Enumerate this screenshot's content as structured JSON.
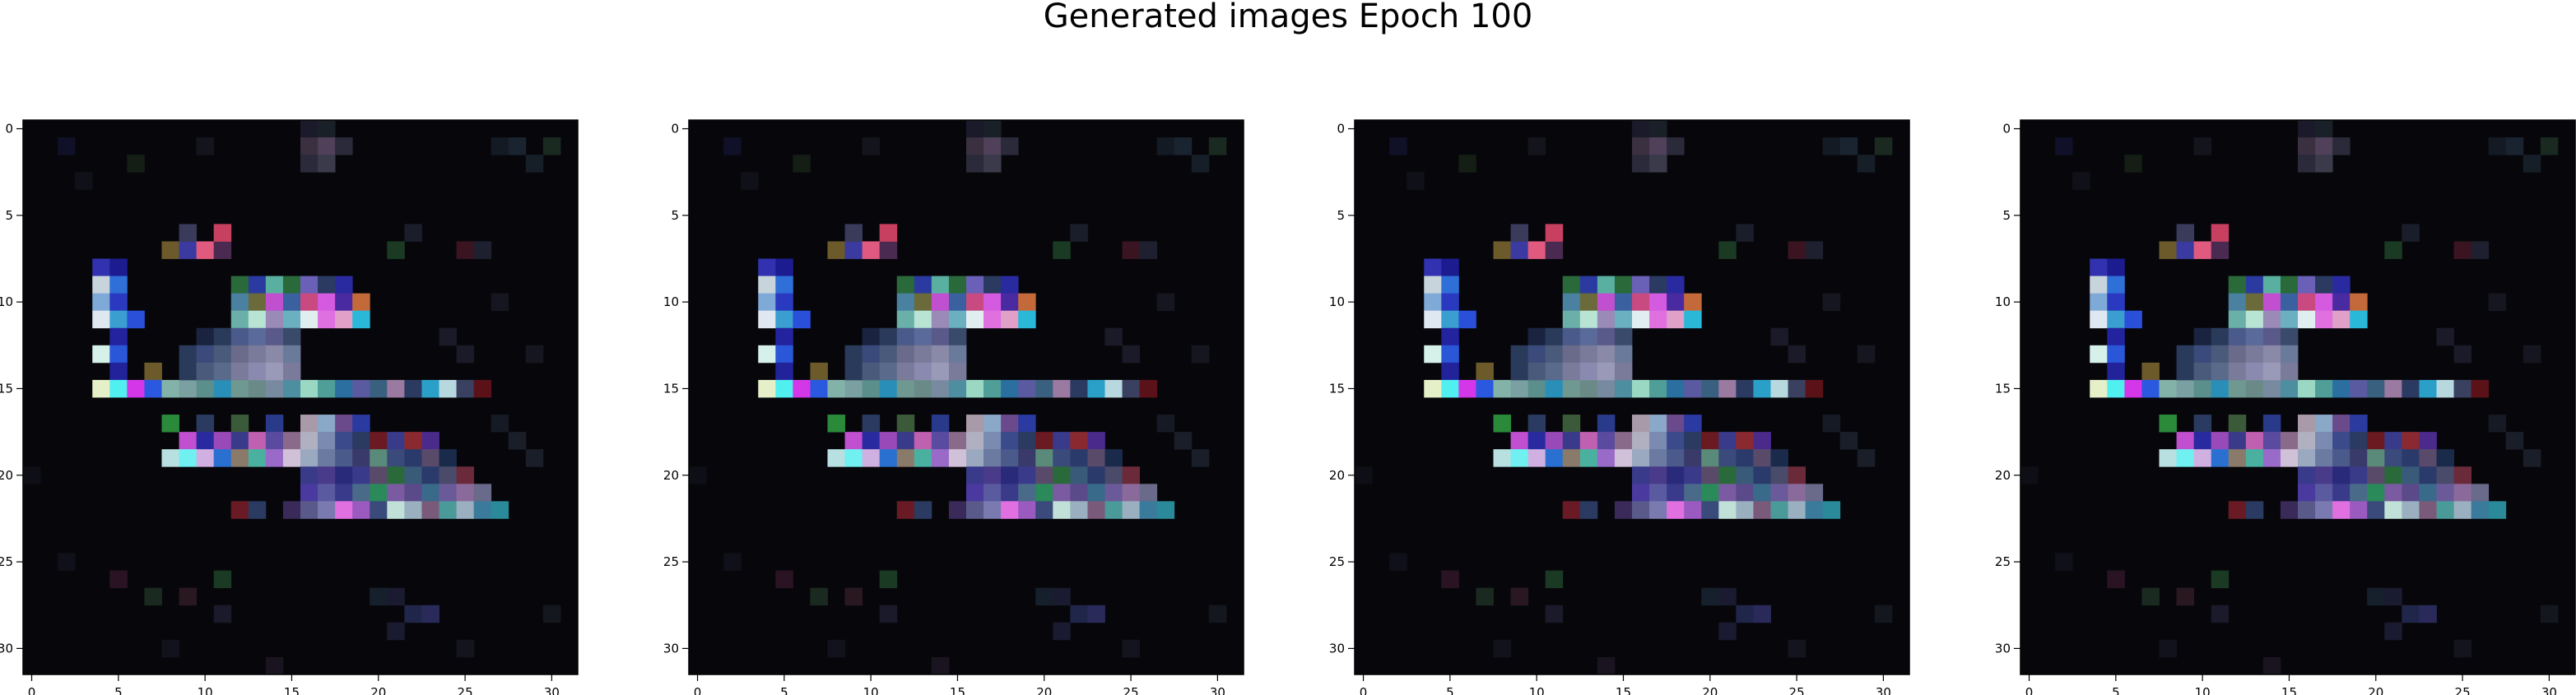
{
  "figure": {
    "title": "Generated images Epoch 100"
  },
  "chart_data": [
    {
      "type": "heatmap",
      "xticks": [
        0,
        5,
        10,
        15,
        20,
        25,
        30
      ],
      "yticks": [
        0,
        5,
        10,
        15,
        20,
        25,
        30
      ],
      "xlim": [
        -0.5,
        31.5
      ],
      "ylim": [
        31.5,
        -0.5
      ],
      "grid": false,
      "grid_size": [
        32,
        32
      ],
      "background_color": "#07070b",
      "pixels": [
        {
          "x": 4,
          "y": 8,
          "color": "#3232b0"
        },
        {
          "x": 5,
          "y": 8,
          "color": "#1c1c90"
        },
        {
          "x": 4,
          "y": 9,
          "color": "#c8d4dc"
        },
        {
          "x": 5,
          "y": 9,
          "color": "#2f6fd8"
        },
        {
          "x": 4,
          "y": 10,
          "color": "#7fa9d6"
        },
        {
          "x": 5,
          "y": 10,
          "color": "#2a3ac0"
        },
        {
          "x": 4,
          "y": 11,
          "color": "#dfe8f0"
        },
        {
          "x": 5,
          "y": 11,
          "color": "#3a9fd0"
        },
        {
          "x": 6,
          "y": 11,
          "color": "#2a4fd8"
        },
        {
          "x": 5,
          "y": 12,
          "color": "#2323a0"
        },
        {
          "x": 4,
          "y": 13,
          "color": "#d6f0ea"
        },
        {
          "x": 5,
          "y": 13,
          "color": "#2a56d8"
        },
        {
          "x": 5,
          "y": 14,
          "color": "#22229a"
        },
        {
          "x": 7,
          "y": 14,
          "color": "#6d5a2a"
        },
        {
          "x": 4,
          "y": 15,
          "color": "#e6f0c8"
        },
        {
          "x": 5,
          "y": 15,
          "color": "#50f0f0"
        },
        {
          "x": 6,
          "y": 15,
          "color": "#d437e8"
        },
        {
          "x": 7,
          "y": 15,
          "color": "#2a59e0"
        },
        {
          "x": 8,
          "y": 15,
          "color": "#83b3a8"
        },
        {
          "x": 9,
          "y": 15,
          "color": "#7aa0a2"
        },
        {
          "x": 10,
          "y": 15,
          "color": "#5a8f8c"
        },
        {
          "x": 11,
          "y": 15,
          "color": "#2a8fb8"
        },
        {
          "x": 12,
          "y": 15,
          "color": "#6f9890"
        },
        {
          "x": 13,
          "y": 15,
          "color": "#6a8a88"
        },
        {
          "x": 14,
          "y": 15,
          "color": "#788aa0"
        },
        {
          "x": 15,
          "y": 15,
          "color": "#4d8ea0"
        },
        {
          "x": 16,
          "y": 15,
          "color": "#9ad8c4"
        },
        {
          "x": 17,
          "y": 15,
          "color": "#4f9e98"
        },
        {
          "x": 18,
          "y": 15,
          "color": "#2a6fa0"
        },
        {
          "x": 19,
          "y": 15,
          "color": "#5a5aa0"
        },
        {
          "x": 20,
          "y": 15,
          "color": "#3a6080"
        },
        {
          "x": 21,
          "y": 15,
          "color": "#9a7aa0"
        },
        {
          "x": 22,
          "y": 15,
          "color": "#2a3a60"
        },
        {
          "x": 23,
          "y": 15,
          "color": "#2aa0c8"
        },
        {
          "x": 24,
          "y": 15,
          "color": "#b8d8e0"
        },
        {
          "x": 25,
          "y": 15,
          "color": "#3a4060"
        },
        {
          "x": 26,
          "y": 15,
          "color": "#5a1218"
        },
        {
          "x": 8,
          "y": 7,
          "color": "#6d5a2a"
        },
        {
          "x": 9,
          "y": 7,
          "color": "#3a3aa0"
        },
        {
          "x": 10,
          "y": 7,
          "color": "#e05a80"
        },
        {
          "x": 11,
          "y": 7,
          "color": "#4a2a50"
        },
        {
          "x": 11,
          "y": 6,
          "color": "#c84060"
        },
        {
          "x": 9,
          "y": 6,
          "color": "#3a3a5a"
        },
        {
          "x": 12,
          "y": 9,
          "color": "#2a6a3a"
        },
        {
          "x": 13,
          "y": 9,
          "color": "#2a3aa0"
        },
        {
          "x": 14,
          "y": 9,
          "color": "#5ab0a0"
        },
        {
          "x": 15,
          "y": 9,
          "color": "#2a6a3a"
        },
        {
          "x": 16,
          "y": 9,
          "color": "#6a60b8"
        },
        {
          "x": 17,
          "y": 9,
          "color": "#2a3a60"
        },
        {
          "x": 18,
          "y": 9,
          "color": "#2a2aa0"
        },
        {
          "x": 12,
          "y": 10,
          "color": "#4a80a0"
        },
        {
          "x": 13,
          "y": 10,
          "color": "#6a6a3a"
        },
        {
          "x": 14,
          "y": 10,
          "color": "#c050d0"
        },
        {
          "x": 15,
          "y": 10,
          "color": "#3a60a0"
        },
        {
          "x": 16,
          "y": 10,
          "color": "#c84a80"
        },
        {
          "x": 17,
          "y": 10,
          "color": "#d45ae0"
        },
        {
          "x": 18,
          "y": 10,
          "color": "#4a2aa0"
        },
        {
          "x": 19,
          "y": 10,
          "color": "#c46a3a"
        },
        {
          "x": 12,
          "y": 11,
          "color": "#6ab0a8"
        },
        {
          "x": 13,
          "y": 11,
          "color": "#b8e4d4"
        },
        {
          "x": 14,
          "y": 11,
          "color": "#9a8ab8"
        },
        {
          "x": 15,
          "y": 11,
          "color": "#6ab0c0"
        },
        {
          "x": 16,
          "y": 11,
          "color": "#e0eef0"
        },
        {
          "x": 17,
          "y": 11,
          "color": "#e070e0"
        },
        {
          "x": 18,
          "y": 11,
          "color": "#e0a0c8"
        },
        {
          "x": 19,
          "y": 11,
          "color": "#2ab8d8"
        },
        {
          "x": 10,
          "y": 12,
          "color": "#1a2440"
        },
        {
          "x": 11,
          "y": 12,
          "color": "#2a3a5a"
        },
        {
          "x": 12,
          "y": 12,
          "color": "#4a5a8a"
        },
        {
          "x": 13,
          "y": 12,
          "color": "#5a6a9a"
        },
        {
          "x": 14,
          "y": 12,
          "color": "#5a5a8a"
        },
        {
          "x": 15,
          "y": 12,
          "color": "#3a4a6a"
        },
        {
          "x": 9,
          "y": 13,
          "color": "#2a3a5a"
        },
        {
          "x": 10,
          "y": 13,
          "color": "#3a4a7a"
        },
        {
          "x": 11,
          "y": 13,
          "color": "#4a5a7a"
        },
        {
          "x": 12,
          "y": 13,
          "color": "#6a6a8a"
        },
        {
          "x": 13,
          "y": 13,
          "color": "#7a7a9a"
        },
        {
          "x": 14,
          "y": 13,
          "color": "#8a8aa8"
        },
        {
          "x": 15,
          "y": 13,
          "color": "#6a7a9a"
        },
        {
          "x": 9,
          "y": 14,
          "color": "#2a3a5a"
        },
        {
          "x": 10,
          "y": 14,
          "color": "#4a5a7a"
        },
        {
          "x": 11,
          "y": 14,
          "color": "#5a6a8a"
        },
        {
          "x": 12,
          "y": 14,
          "color": "#7a7a9a"
        },
        {
          "x": 13,
          "y": 14,
          "color": "#8a8ab0"
        },
        {
          "x": 14,
          "y": 14,
          "color": "#9a9ab8"
        },
        {
          "x": 15,
          "y": 14,
          "color": "#7a7a9a"
        },
        {
          "x": 8,
          "y": 17,
          "color": "#2a8a3a"
        },
        {
          "x": 10,
          "y": 17,
          "color": "#2a3a60"
        },
        {
          "x": 12,
          "y": 17,
          "color": "#3a5a3a"
        },
        {
          "x": 14,
          "y": 17,
          "color": "#2a3a8a"
        },
        {
          "x": 16,
          "y": 17,
          "color": "#a89aa8"
        },
        {
          "x": 17,
          "y": 17,
          "color": "#8aa8c8"
        },
        {
          "x": 18,
          "y": 17,
          "color": "#6a4a8a"
        },
        {
          "x": 19,
          "y": 17,
          "color": "#2a3aa0"
        },
        {
          "x": 9,
          "y": 18,
          "color": "#c050d0"
        },
        {
          "x": 10,
          "y": 18,
          "color": "#2a2aa0"
        },
        {
          "x": 11,
          "y": 18,
          "color": "#9a4ab8"
        },
        {
          "x": 12,
          "y": 18,
          "color": "#3a3a8a"
        },
        {
          "x": 13,
          "y": 18,
          "color": "#c060b0"
        },
        {
          "x": 14,
          "y": 18,
          "color": "#5a4aa0"
        },
        {
          "x": 15,
          "y": 18,
          "color": "#8a6a8a"
        },
        {
          "x": 16,
          "y": 18,
          "color": "#b0b0c0"
        },
        {
          "x": 17,
          "y": 18,
          "color": "#7a8ab0"
        },
        {
          "x": 18,
          "y": 18,
          "color": "#3a4a8a"
        },
        {
          "x": 19,
          "y": 18,
          "color": "#2a3a60"
        },
        {
          "x": 20,
          "y": 18,
          "color": "#6a1a20"
        },
        {
          "x": 21,
          "y": 18,
          "color": "#3a3a8a"
        },
        {
          "x": 22,
          "y": 18,
          "color": "#8a2a30"
        },
        {
          "x": 23,
          "y": 18,
          "color": "#4a2a8a"
        },
        {
          "x": 8,
          "y": 19,
          "color": "#b8e0e0"
        },
        {
          "x": 9,
          "y": 19,
          "color": "#70f0f0"
        },
        {
          "x": 10,
          "y": 19,
          "color": "#d0b0e0"
        },
        {
          "x": 11,
          "y": 19,
          "color": "#2a70d0"
        },
        {
          "x": 12,
          "y": 19,
          "color": "#8a7a6a"
        },
        {
          "x": 13,
          "y": 19,
          "color": "#4ab0a0"
        },
        {
          "x": 14,
          "y": 19,
          "color": "#9a6ac8"
        },
        {
          "x": 15,
          "y": 19,
          "color": "#d0c0d8"
        },
        {
          "x": 16,
          "y": 19,
          "color": "#9aa8c0"
        },
        {
          "x": 17,
          "y": 19,
          "color": "#6a7aa0"
        },
        {
          "x": 18,
          "y": 19,
          "color": "#4a5a8a"
        },
        {
          "x": 19,
          "y": 19,
          "color": "#3a3a6a"
        },
        {
          "x": 20,
          "y": 19,
          "color": "#5a8a7a"
        },
        {
          "x": 21,
          "y": 19,
          "color": "#3a4a7a"
        },
        {
          "x": 22,
          "y": 19,
          "color": "#2a3a6a"
        },
        {
          "x": 23,
          "y": 19,
          "color": "#5a4a6a"
        },
        {
          "x": 24,
          "y": 19,
          "color": "#1a2a4a"
        },
        {
          "x": 16,
          "y": 20,
          "color": "#3a3a8a"
        },
        {
          "x": 17,
          "y": 20,
          "color": "#4a3a8a"
        },
        {
          "x": 18,
          "y": 20,
          "color": "#2a2a7a"
        },
        {
          "x": 19,
          "y": 20,
          "color": "#3a3a8a"
        },
        {
          "x": 20,
          "y": 20,
          "color": "#5a4a6a"
        },
        {
          "x": 21,
          "y": 20,
          "color": "#2a6a3a"
        },
        {
          "x": 22,
          "y": 20,
          "color": "#3a5a7a"
        },
        {
          "x": 23,
          "y": 20,
          "color": "#2a3a6a"
        },
        {
          "x": 24,
          "y": 20,
          "color": "#4a4a6a"
        },
        {
          "x": 25,
          "y": 20,
          "color": "#6a2a3a"
        },
        {
          "x": 16,
          "y": 21,
          "color": "#4a3aa0"
        },
        {
          "x": 17,
          "y": 21,
          "color": "#5a5aa0"
        },
        {
          "x": 18,
          "y": 21,
          "color": "#3a3a8a"
        },
        {
          "x": 19,
          "y": 21,
          "color": "#4a6a8a"
        },
        {
          "x": 20,
          "y": 21,
          "color": "#2a8a5a"
        },
        {
          "x": 21,
          "y": 21,
          "color": "#7a5aa0"
        },
        {
          "x": 22,
          "y": 21,
          "color": "#5a4a8a"
        },
        {
          "x": 23,
          "y": 21,
          "color": "#3a6a8a"
        },
        {
          "x": 24,
          "y": 21,
          "color": "#6a5a9a"
        },
        {
          "x": 25,
          "y": 21,
          "color": "#8a6a9a"
        },
        {
          "x": 26,
          "y": 21,
          "color": "#6a6a8a"
        },
        {
          "x": 12,
          "y": 22,
          "color": "#6a1a24"
        },
        {
          "x": 13,
          "y": 22,
          "color": "#2a3a60"
        },
        {
          "x": 15,
          "y": 22,
          "color": "#3a2a5a"
        },
        {
          "x": 16,
          "y": 22,
          "color": "#5a5a8a"
        },
        {
          "x": 17,
          "y": 22,
          "color": "#7a7ab0"
        },
        {
          "x": 18,
          "y": 22,
          "color": "#e070e0"
        },
        {
          "x": 19,
          "y": 22,
          "color": "#9a5ac0"
        },
        {
          "x": 20,
          "y": 22,
          "color": "#3a4a7a"
        },
        {
          "x": 21,
          "y": 22,
          "color": "#c0e0d8"
        },
        {
          "x": 22,
          "y": 22,
          "color": "#9ab0c0"
        },
        {
          "x": 23,
          "y": 22,
          "color": "#7a5a7a"
        },
        {
          "x": 24,
          "y": 22,
          "color": "#4a9a9a"
        },
        {
          "x": 25,
          "y": 22,
          "color": "#9ab0c0"
        },
        {
          "x": 26,
          "y": 22,
          "color": "#3a7a9a"
        },
        {
          "x": 27,
          "y": 22,
          "color": "#2a8a9a"
        },
        {
          "x": 10,
          "y": 1,
          "color": "#14141c"
        },
        {
          "x": 16,
          "y": 0,
          "color": "#1a1a2a"
        },
        {
          "x": 17,
          "y": 0,
          "color": "#1a2028"
        },
        {
          "x": 16,
          "y": 1,
          "color": "#3a3040"
        },
        {
          "x": 17,
          "y": 1,
          "color": "#50405a"
        },
        {
          "x": 18,
          "y": 1,
          "color": "#2a2a3a"
        },
        {
          "x": 16,
          "y": 2,
          "color": "#2a2a3a"
        },
        {
          "x": 17,
          "y": 2,
          "color": "#3a3a4a"
        },
        {
          "x": 27,
          "y": 1,
          "color": "#141a24"
        },
        {
          "x": 28,
          "y": 1,
          "color": "#1a2430"
        },
        {
          "x": 30,
          "y": 1,
          "color": "#1a2a20"
        },
        {
          "x": 29,
          "y": 2,
          "color": "#161e28"
        },
        {
          "x": 22,
          "y": 6,
          "color": "#1a1e2a"
        },
        {
          "x": 25,
          "y": 7,
          "color": "#3a1420"
        },
        {
          "x": 21,
          "y": 7,
          "color": "#1a3a24"
        },
        {
          "x": 26,
          "y": 7,
          "color": "#1e2030"
        },
        {
          "x": 20,
          "y": 27,
          "color": "#16202c"
        },
        {
          "x": 21,
          "y": 27,
          "color": "#1a1a30"
        },
        {
          "x": 22,
          "y": 28,
          "color": "#20264a"
        },
        {
          "x": 23,
          "y": 28,
          "color": "#2a2a5a"
        },
        {
          "x": 21,
          "y": 29,
          "color": "#1a1a30"
        },
        {
          "x": 7,
          "y": 27,
          "color": "#1a2a20"
        },
        {
          "x": 9,
          "y": 27,
          "color": "#2a1820"
        },
        {
          "x": 11,
          "y": 26,
          "color": "#1a3a24"
        },
        {
          "x": 5,
          "y": 26,
          "color": "#2a1424"
        },
        {
          "x": 11,
          "y": 28,
          "color": "#1a1a2a"
        },
        {
          "x": 25,
          "y": 13,
          "color": "#1a1a28"
        },
        {
          "x": 24,
          "y": 12,
          "color": "#1a1a28"
        },
        {
          "x": 29,
          "y": 13,
          "color": "#161620"
        },
        {
          "x": 27,
          "y": 10,
          "color": "#161620"
        },
        {
          "x": 28,
          "y": 18,
          "color": "#1a1e28"
        },
        {
          "x": 29,
          "y": 19,
          "color": "#1a1e28"
        },
        {
          "x": 27,
          "y": 17,
          "color": "#161a24"
        },
        {
          "x": 2,
          "y": 1,
          "color": "#101028"
        },
        {
          "x": 6,
          "y": 2,
          "color": "#141e14"
        },
        {
          "x": 3,
          "y": 3,
          "color": "#101018"
        },
        {
          "x": 0,
          "y": 20,
          "color": "#0e0e16"
        },
        {
          "x": 2,
          "y": 25,
          "color": "#10101a"
        },
        {
          "x": 25,
          "y": 30,
          "color": "#14141e"
        },
        {
          "x": 30,
          "y": 28,
          "color": "#14181e"
        },
        {
          "x": 14,
          "y": 31,
          "color": "#1a1420"
        },
        {
          "x": 8,
          "y": 30,
          "color": "#12121c"
        }
      ]
    },
    {
      "type": "heatmap",
      "xticks": [
        0,
        5,
        10,
        15,
        20,
        25,
        30
      ],
      "yticks": [
        0,
        5,
        10,
        15,
        20,
        25,
        30
      ],
      "xlim": [
        -0.5,
        31.5
      ],
      "ylim": [
        31.5,
        -0.5
      ],
      "grid": false,
      "same_pixels_as": 0
    },
    {
      "type": "heatmap",
      "xticks": [
        0,
        5,
        10,
        15,
        20,
        25,
        30
      ],
      "yticks": [
        0,
        5,
        10,
        15,
        20,
        25,
        30
      ],
      "xlim": [
        -0.5,
        31.5
      ],
      "ylim": [
        31.5,
        -0.5
      ],
      "grid": false,
      "same_pixels_as": 0
    },
    {
      "type": "heatmap",
      "xticks": [
        0,
        5,
        10,
        15,
        20,
        25,
        30
      ],
      "yticks": [
        0,
        5,
        10,
        15,
        20,
        25,
        30
      ],
      "xlim": [
        -0.5,
        31.5
      ],
      "ylim": [
        31.5,
        -0.5
      ],
      "grid": false,
      "same_pixels_as": 0
    }
  ]
}
